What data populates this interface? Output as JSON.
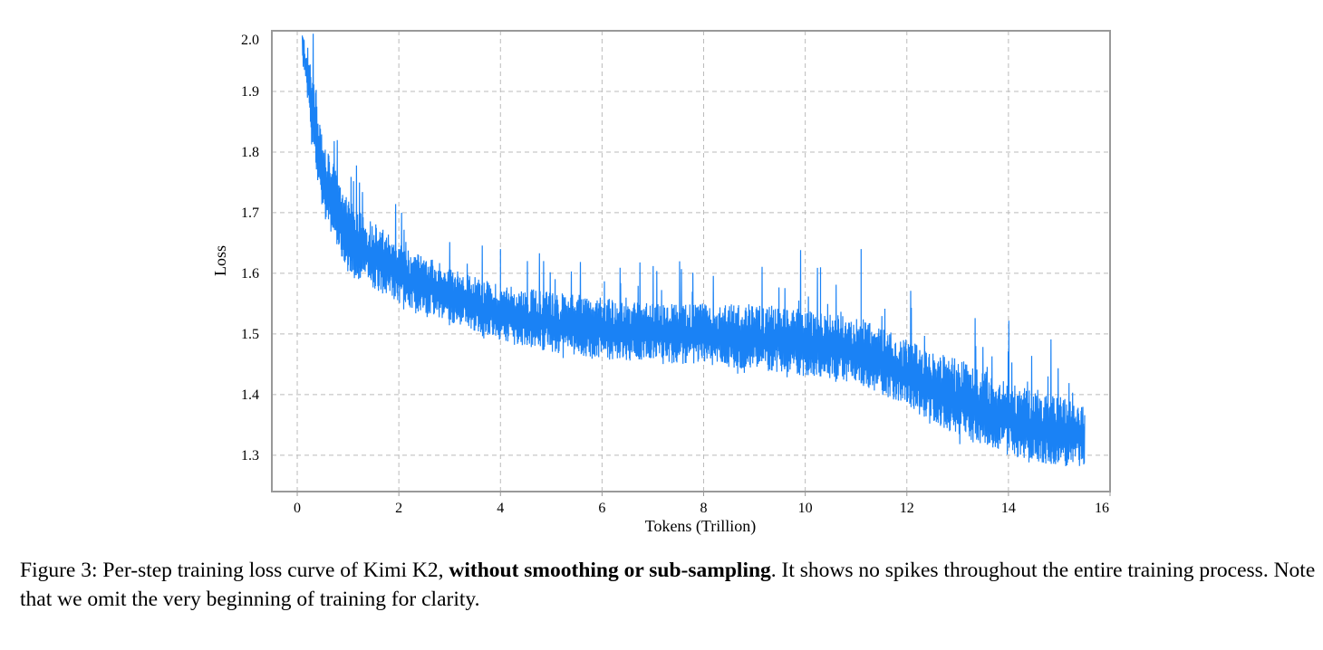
{
  "chart_data": {
    "type": "line",
    "title": "",
    "xlabel": "Tokens (Trillion)",
    "ylabel": "Loss",
    "xlim": [
      -0.5,
      16
    ],
    "ylim": [
      1.24,
      2.0
    ],
    "xticks": [
      "0",
      "2",
      "4",
      "6",
      "8",
      "10",
      "12",
      "14",
      "16"
    ],
    "yticks": [
      "1.3",
      "1.4",
      "1.5",
      "1.6",
      "1.7",
      "1.8",
      "1.9",
      "2.0"
    ],
    "grid": true,
    "color": "#1a82f5",
    "series": [
      {
        "x": [
          0.1,
          0.3,
          0.5,
          1,
          2,
          3,
          4,
          5,
          6,
          7,
          8,
          9,
          10,
          11,
          12,
          13,
          14,
          15,
          15.5
        ],
        "lower": [
          1.95,
          1.8,
          1.7,
          1.6,
          1.55,
          1.52,
          1.49,
          1.47,
          1.46,
          1.45,
          1.45,
          1.44,
          1.43,
          1.42,
          1.38,
          1.33,
          1.3,
          1.28,
          1.28
        ],
        "upper": [
          2.0,
          1.95,
          1.82,
          1.72,
          1.65,
          1.61,
          1.58,
          1.57,
          1.56,
          1.55,
          1.55,
          1.55,
          1.54,
          1.53,
          1.49,
          1.46,
          1.42,
          1.4,
          1.38
        ]
      }
    ],
    "notable_spikes": [
      {
        "x": 4.0,
        "y": 1.64
      },
      {
        "x": 10.3,
        "y": 1.61
      },
      {
        "x": 11.1,
        "y": 1.64
      }
    ]
  },
  "caption": {
    "prefix": "Figure 3: Per-step training loss curve of Kimi K2, ",
    "bold": "without smoothing or sub-sampling",
    "suffix": ". It shows no spikes throughout the entire training process. Note that we omit the very beginning of training for clarity."
  }
}
